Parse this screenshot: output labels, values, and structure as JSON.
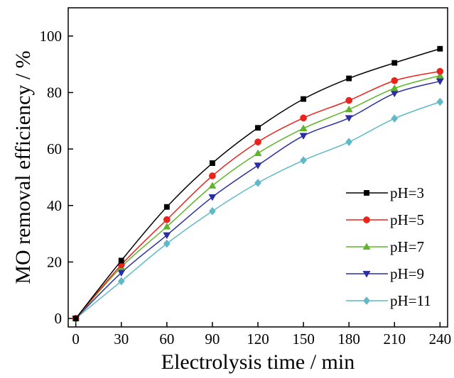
{
  "chart_data": {
    "type": "line",
    "xlabel": "Electrolysis time / min",
    "ylabel": "MO removal efficiency / %",
    "xlim": [
      -5,
      245
    ],
    "ylim": [
      -3,
      110
    ],
    "x": [
      0,
      30,
      60,
      90,
      120,
      150,
      180,
      210,
      240
    ],
    "x_ticks": [
      0,
      30,
      60,
      90,
      120,
      150,
      180,
      210,
      240
    ],
    "y_ticks": [
      0,
      20,
      40,
      60,
      80,
      100
    ],
    "grid": false,
    "legend_position": "lower-right",
    "series": [
      {
        "name": "pH=3",
        "color": "#000000",
        "marker": "square",
        "values": [
          0,
          20.5,
          39.5,
          55.0,
          67.5,
          77.7,
          85.0,
          90.5,
          95.5
        ]
      },
      {
        "name": "pH=5",
        "color": "#e8241c",
        "marker": "circle",
        "values": [
          0,
          19.0,
          35.0,
          50.5,
          62.5,
          71.0,
          77.2,
          84.2,
          87.5
        ]
      },
      {
        "name": "pH=7",
        "color": "#5fb52a",
        "marker": "triangle-up",
        "values": [
          0,
          18.2,
          32.5,
          47.0,
          58.5,
          67.3,
          74.0,
          81.5,
          86.0
        ]
      },
      {
        "name": "pH=9",
        "color": "#2a2ea3",
        "marker": "triangle-down",
        "values": [
          0,
          16.2,
          29.5,
          43.0,
          54.2,
          64.7,
          71.0,
          79.7,
          84.0
        ]
      },
      {
        "name": "pH=11",
        "color": "#5fb9c7",
        "marker": "diamond",
        "values": [
          0,
          13.2,
          26.5,
          38.0,
          48.0,
          56.0,
          62.5,
          70.8,
          76.7
        ]
      }
    ]
  }
}
